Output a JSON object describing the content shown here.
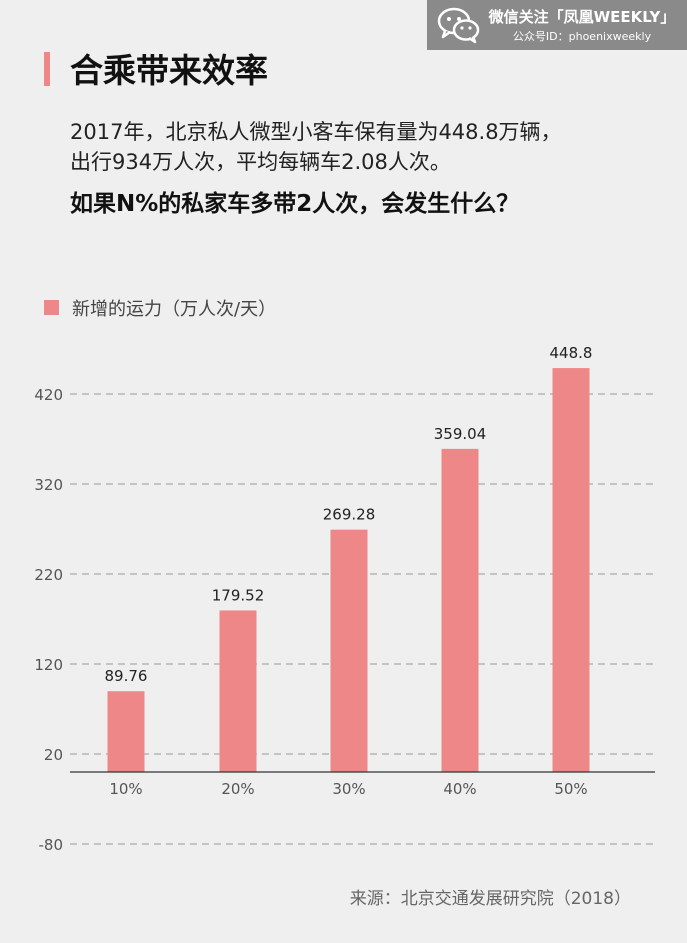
{
  "watermark": {
    "line1": "微信关注「凤凰WEEKLY」",
    "line2": "公众号ID：phoenixweekly",
    "icon": "wechat-icon"
  },
  "header": {
    "title": "合乘带来效率",
    "subtitle_line1": "2017年，北京私人微型小客车保有量为448.8万辆，",
    "subtitle_line2": "出行934万人次，平均每辆车2.08人次。",
    "question": "如果N%的私家车多带2人次，会发生什么？"
  },
  "footer": {
    "source": "来源：北京交通发展研究院（2018）"
  },
  "colors": {
    "bar": "#ee8888",
    "accent": "#ee8888",
    "grid": "#9a9a9a",
    "background": "#efefef"
  },
  "chart_data": {
    "type": "bar",
    "categories": [
      "10%",
      "20%",
      "30%",
      "40%",
      "50%"
    ],
    "series": [
      {
        "name": "新增的运力（万人次/天）",
        "values": [
          89.76,
          179.52,
          269.28,
          359.04,
          448.8
        ]
      }
    ],
    "data_labels": [
      "89.76",
      "179.52",
      "269.28",
      "359.04",
      "448.8"
    ],
    "yticks": [
      420,
      320,
      220,
      120,
      20,
      -80
    ],
    "ylim": [
      -80,
      448.8
    ],
    "baseline": 0,
    "grid": true,
    "grid_style": "dashed",
    "legend_position": "top-left"
  }
}
